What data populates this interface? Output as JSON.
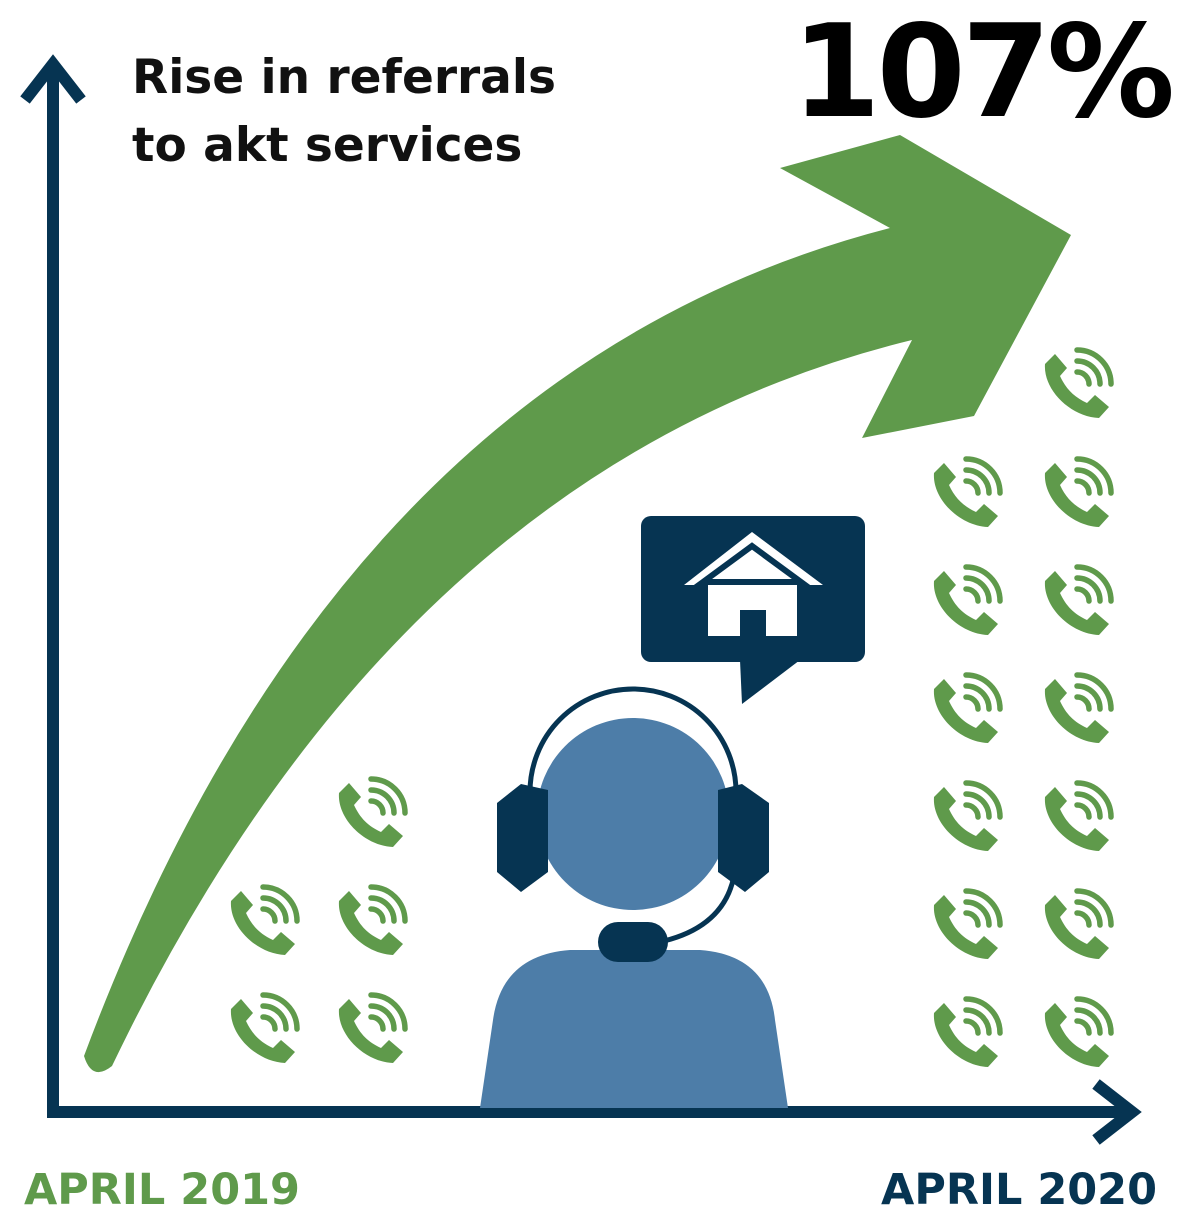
{
  "title": {
    "line1": "Rise in referrals",
    "line2": "to akt services"
  },
  "headline_value": "107%",
  "x_axis": {
    "start_label": "APRIL 2019",
    "end_label": "APRIL 2020"
  },
  "phone_counts": {
    "april_2019": 5,
    "april_2020": 13
  },
  "colors": {
    "green": "#5f9a4b",
    "navy": "#063452",
    "person_blue": "#4d7da8",
    "headline": "#000000"
  },
  "icons": [
    "phone-icon",
    "house-icon",
    "speech-bubble-icon",
    "headset-icon",
    "person-icon",
    "growth-arrow-icon"
  ]
}
